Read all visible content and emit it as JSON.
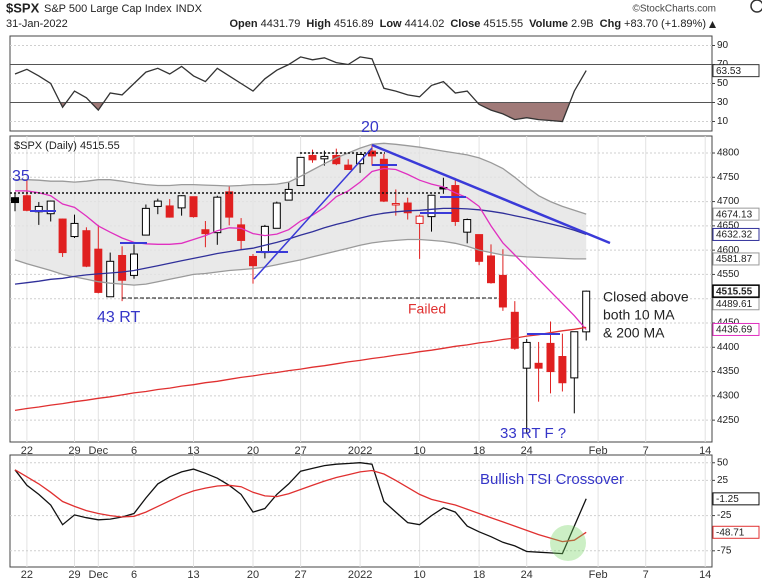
{
  "header": {
    "symbol": "$SPX",
    "name": "S&P 500 Large Cap Index",
    "exchange": "INDX",
    "date": "31-Jan-2022",
    "source": "©StockCharts.com",
    "quote": [
      {
        "label": "Open",
        "value": 4431.79
      },
      {
        "label": "High",
        "value": 4516.89
      },
      {
        "label": "Low",
        "value": 4414.02
      },
      {
        "label": "Close",
        "value": 4515.55
      },
      {
        "label": "Volume",
        "value": "2.9B"
      },
      {
        "label": "Chg",
        "value": "+83.70 (+1.89%)"
      }
    ]
  },
  "chart_data": [
    {
      "type": "line",
      "ylim": [
        0,
        100
      ],
      "yticks": [
        10,
        30,
        50,
        70,
        90
      ],
      "grid": true,
      "overbought": 70,
      "oversold": 30,
      "fill_color": "#a07a78",
      "series": [
        {
          "color": "#333333",
          "label_last": true,
          "values": [
            60,
            65,
            58,
            50,
            25,
            42,
            35,
            22,
            40,
            38,
            50,
            62,
            66,
            60,
            68,
            58,
            52,
            66,
            58,
            50,
            42,
            55,
            64,
            70,
            78,
            75,
            77,
            72,
            70,
            78,
            76,
            45,
            42,
            38,
            36,
            48,
            52,
            40,
            42,
            28,
            22,
            18,
            12,
            14,
            12,
            11,
            10,
            42,
            63.53,
            null,
            null,
            null,
            null,
            null,
            null,
            null,
            null,
            null,
            null
          ]
        }
      ]
    },
    {
      "type": "candlestick",
      "label": "$SPX (Daily) 4515.55",
      "ylim": [
        4205,
        4835
      ],
      "yticks": [
        4250,
        4300,
        4350,
        4400,
        4450,
        4500,
        4550,
        4600,
        4650,
        4700,
        4750,
        4800
      ],
      "grid": true,
      "up_color": "#000000",
      "down_color": "#e02020",
      "band_color": "#e4e4e4",
      "categories": [
        null,
        "22",
        null,
        null,
        null,
        "29",
        null,
        "Dec",
        null,
        null,
        "6",
        null,
        null,
        null,
        null,
        "13",
        null,
        null,
        null,
        null,
        "20",
        null,
        null,
        null,
        "27",
        null,
        null,
        null,
        null,
        "2022",
        null,
        null,
        null,
        null,
        "10",
        null,
        null,
        null,
        null,
        "18",
        null,
        null,
        null,
        "24",
        null,
        null,
        null,
        null,
        null,
        "Feb",
        null,
        null,
        null,
        "7",
        null,
        null,
        null,
        null,
        "14"
      ],
      "open": [
        4708,
        4712,
        4679,
        4675,
        4664,
        4628,
        4640,
        4602,
        4504,
        4589,
        4548,
        4631,
        4690,
        4691,
        4687,
        4710,
        4642,
        4636,
        4720,
        4652,
        4587,
        4595,
        4645,
        4703,
        4733,
        4795,
        4788,
        4795,
        4775,
        4778,
        4804,
        4787,
        4693,
        4697,
        4655,
        4669,
        4729,
        4733,
        4637,
        4632,
        4588,
        4548,
        4472,
        4357,
        4367,
        4408,
        4381,
        4337,
        4431.79,
        null,
        null,
        null,
        null,
        null,
        null,
        null,
        null,
        null,
        null
      ],
      "high": [
        4718,
        4744,
        4699,
        4702,
        4665,
        4673,
        4647,
        4652,
        4595,
        4608,
        4612,
        4694,
        4706,
        4705,
        4713,
        4710,
        4660,
        4712,
        4731,
        4666,
        4592,
        4652,
        4700,
        4740,
        4791,
        4807,
        4805,
        4809,
        4787,
        4796,
        4819,
        4798,
        4725,
        4708,
        4673,
        4714,
        4749,
        4744,
        4665,
        4632,
        4612,
        4602,
        4495,
        4417,
        4411,
        4453,
        4428,
        4432,
        4516.89,
        null,
        null,
        null,
        null,
        null,
        null,
        null,
        null,
        null,
        null
      ],
      "low": [
        4680,
        4680,
        4652,
        4659,
        4586,
        4625,
        4565,
        4511,
        4504,
        4495,
        4541,
        4631,
        4674,
        4667,
        4671,
        4667,
        4606,
        4611,
        4651,
        4600,
        4531,
        4583,
        4645,
        4703,
        4733,
        4780,
        4774,
        4775,
        4766,
        4759,
        4774,
        4699,
        4671,
        4663,
        4582,
        4638,
        4716,
        4650,
        4614,
        4569,
        4531,
        4475,
        4395,
        4222,
        4288,
        4305,
        4309,
        4264,
        4414.02,
        null,
        null,
        null,
        null,
        null,
        null,
        null,
        null,
        null,
        null
      ],
      "close": [
        4698,
        4682,
        4690,
        4701,
        4595,
        4655,
        4567,
        4513,
        4577,
        4538,
        4592,
        4686,
        4701,
        4668,
        4712,
        4669,
        4634,
        4709,
        4668,
        4620,
        4568,
        4649,
        4697,
        4725,
        4791,
        4786,
        4793,
        4778,
        4766,
        4797,
        4794,
        4701,
        4696,
        4677,
        4670,
        4713,
        4726,
        4659,
        4663,
        4577,
        4533,
        4483,
        4398,
        4410,
        4357,
        4350,
        4327,
        4432,
        4515.55,
        null,
        null,
        null,
        null,
        null,
        null,
        null,
        null,
        null,
        null
      ],
      "series": [
        {
          "color": "#9a9a9a",
          "label_last": true,
          "values": [
            4745,
            4745,
            4744,
            4742,
            4742,
            4740,
            4742,
            4745,
            4745,
            4742,
            4738,
            4735,
            4733,
            4733,
            4735,
            4735,
            4734,
            4733,
            4732,
            4733,
            4735,
            4735,
            4736,
            4740,
            4752,
            4765,
            4778,
            4790,
            4800,
            4810,
            4818,
            4820,
            4818,
            4815,
            4812,
            4808,
            4804,
            4800,
            4796,
            4790,
            4780,
            4768,
            4750,
            4730,
            4712,
            4700,
            4690,
            4682,
            4674.13,
            null,
            null,
            null,
            null,
            null,
            null,
            null,
            null,
            null,
            null
          ]
        },
        {
          "color": "#9a9a9a",
          "label_last": true,
          "values": [
            4580,
            4572,
            4565,
            4558,
            4550,
            4545,
            4540,
            4535,
            4532,
            4530,
            4528,
            4530,
            4535,
            4540,
            4545,
            4550,
            4552,
            4555,
            4558,
            4560,
            4562,
            4565,
            4570,
            4575,
            4580,
            4586,
            4592,
            4598,
            4604,
            4610,
            4615,
            4618,
            4620,
            4622,
            4622,
            4620,
            4618,
            4614,
            4608,
            4600,
            4595,
            4590,
            4588,
            4586,
            4585,
            4584,
            4583,
            4582,
            4581.87,
            null,
            null,
            null,
            null,
            null,
            null,
            null,
            null,
            null,
            null
          ]
        },
        {
          "color": "#30309a",
          "label_last": true,
          "values": [
            4530,
            4533,
            4536,
            4540,
            4542,
            4546,
            4549,
            4551,
            4553,
            4555,
            4558,
            4563,
            4568,
            4573,
            4578,
            4583,
            4588,
            4593,
            4597,
            4601,
            4604,
            4610,
            4616,
            4623,
            4631,
            4638,
            4646,
            4653,
            4659,
            4666,
            4672,
            4676,
            4679,
            4681,
            4682,
            4684,
            4686,
            4686,
            4685,
            4683,
            4680,
            4676,
            4671,
            4666,
            4660,
            4654,
            4648,
            4641,
            4632.32,
            null,
            null,
            null,
            null,
            null,
            null,
            null,
            null,
            null,
            null
          ]
        },
        {
          "color": "#e030c0",
          "label_last": true,
          "values": [
            4722,
            4722,
            4718,
            4712,
            4695,
            4688,
            4670,
            4650,
            4637,
            4625,
            4616,
            4613,
            4612,
            4612,
            4614,
            4622,
            4630,
            4640,
            4646,
            4645,
            4634,
            4630,
            4633,
            4642,
            4660,
            4672,
            4688,
            4710,
            4722,
            4740,
            4762,
            4768,
            4766,
            4756,
            4744,
            4736,
            4730,
            4718,
            4708,
            4690,
            4650,
            4615,
            4590,
            4565,
            4540,
            4515,
            4490,
            4465,
            4436.69,
            null,
            null,
            null,
            null,
            null,
            null,
            null,
            null,
            null,
            null
          ]
        },
        {
          "color": "#e03030",
          "label_last": false,
          "values": [
            4270,
            4274,
            4277,
            4281,
            4284,
            4288,
            4291,
            4295,
            4298,
            4302,
            4306,
            4309,
            4313,
            4316,
            4320,
            4323,
            4327,
            4330,
            4334,
            4338,
            4341,
            4345,
            4348,
            4352,
            4355,
            4359,
            4362,
            4366,
            4370,
            4373,
            4377,
            4380,
            4384,
            4387,
            4391,
            4394,
            4398,
            4402,
            4405,
            4409,
            4412,
            4416,
            4419,
            4423,
            4426,
            4430,
            4434,
            4437,
            4441,
            null,
            null,
            null,
            null,
            null,
            null,
            null,
            null,
            null,
            null
          ]
        }
      ],
      "markers": [
        4489.61
      ],
      "annotations": [
        "35",
        "20",
        "43 RT",
        "Failed",
        "33 RT F ?",
        "Closed above",
        "both 10 MA",
        "& 200 MA"
      ]
    },
    {
      "type": "line",
      "ylim": [
        -98,
        61
      ],
      "yticks": [
        50,
        25,
        -25,
        -75
      ],
      "grid": true,
      "categories": [
        null,
        "22",
        null,
        null,
        null,
        "29",
        null,
        "Dec",
        null,
        null,
        "6",
        null,
        null,
        null,
        null,
        "13",
        null,
        null,
        null,
        null,
        "20",
        null,
        null,
        null,
        "27",
        null,
        null,
        null,
        null,
        "2022",
        null,
        null,
        null,
        null,
        "10",
        null,
        null,
        null,
        null,
        "18",
        null,
        null,
        null,
        "24",
        null,
        null,
        null,
        null,
        null,
        "Feb",
        null,
        null,
        null,
        "7",
        null,
        null,
        null,
        null,
        "14"
      ],
      "series": [
        {
          "color": "#111111",
          "label_last": true,
          "values": [
            40,
            18,
            5,
            -10,
            -38,
            -24,
            -28,
            -31,
            -30,
            -27,
            -22,
            0,
            20,
            30,
            37,
            41,
            35,
            28,
            18,
            5,
            -20,
            -15,
            5,
            20,
            38,
            42,
            46,
            48,
            49,
            50,
            48,
            -5,
            -20,
            -35,
            -38,
            -25,
            -14,
            -20,
            -40,
            -48,
            -55,
            -63,
            -68,
            -76,
            -77,
            -78,
            -79,
            -40,
            -1.25,
            null,
            null,
            null,
            null,
            null,
            null,
            null,
            null,
            null,
            null
          ]
        },
        {
          "color": "#e03030",
          "label_last": true,
          "values": [
            40,
            30,
            20,
            8,
            -5,
            -12,
            -18,
            -22,
            -25,
            -27,
            -26,
            -20,
            -12,
            -4,
            4,
            10,
            14,
            17,
            18,
            16,
            8,
            3,
            2,
            6,
            12,
            18,
            24,
            29,
            33,
            37,
            39,
            34,
            25,
            15,
            5,
            -2,
            -6,
            -10,
            -16,
            -22,
            -28,
            -34,
            -40,
            -46,
            -52,
            -57,
            -62,
            -60,
            -48.71,
            null,
            null,
            null,
            null,
            null,
            null,
            null,
            null,
            null,
            null
          ]
        }
      ],
      "annotations": [
        "Bullish TSI Crossover"
      ]
    }
  ]
}
